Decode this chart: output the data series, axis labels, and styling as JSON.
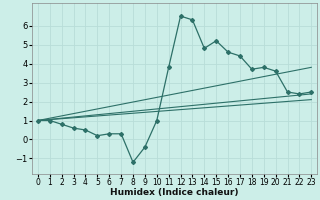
{
  "xlabel": "Humidex (Indice chaleur)",
  "xlim": [
    -0.5,
    23.5
  ],
  "ylim": [
    -1.8,
    7.2
  ],
  "yticks": [
    -1,
    0,
    1,
    2,
    3,
    4,
    5,
    6
  ],
  "xticks": [
    0,
    1,
    2,
    3,
    4,
    5,
    6,
    7,
    8,
    9,
    10,
    11,
    12,
    13,
    14,
    15,
    16,
    17,
    18,
    19,
    20,
    21,
    22,
    23
  ],
  "bg_color": "#cceee8",
  "line_color": "#2d7068",
  "grid_color": "#b8ddd8",
  "line1_x": [
    0,
    1,
    2,
    3,
    4,
    5,
    6,
    7,
    8,
    9,
    10,
    11,
    12,
    13,
    14,
    15,
    16,
    17,
    18,
    19,
    20,
    21,
    22,
    23
  ],
  "line1_y": [
    1.0,
    1.0,
    0.8,
    0.6,
    0.5,
    0.2,
    0.3,
    0.3,
    -1.2,
    -0.4,
    1.0,
    3.8,
    6.5,
    6.3,
    4.8,
    5.2,
    4.6,
    4.4,
    3.7,
    3.8,
    3.6,
    2.5,
    2.4,
    2.5
  ],
  "line2_x": [
    0,
    23
  ],
  "line2_y": [
    1.0,
    3.8
  ],
  "line3_x": [
    0,
    23
  ],
  "line3_y": [
    1.0,
    2.4
  ],
  "line4_x": [
    0,
    23
  ],
  "line4_y": [
    1.0,
    2.1
  ]
}
